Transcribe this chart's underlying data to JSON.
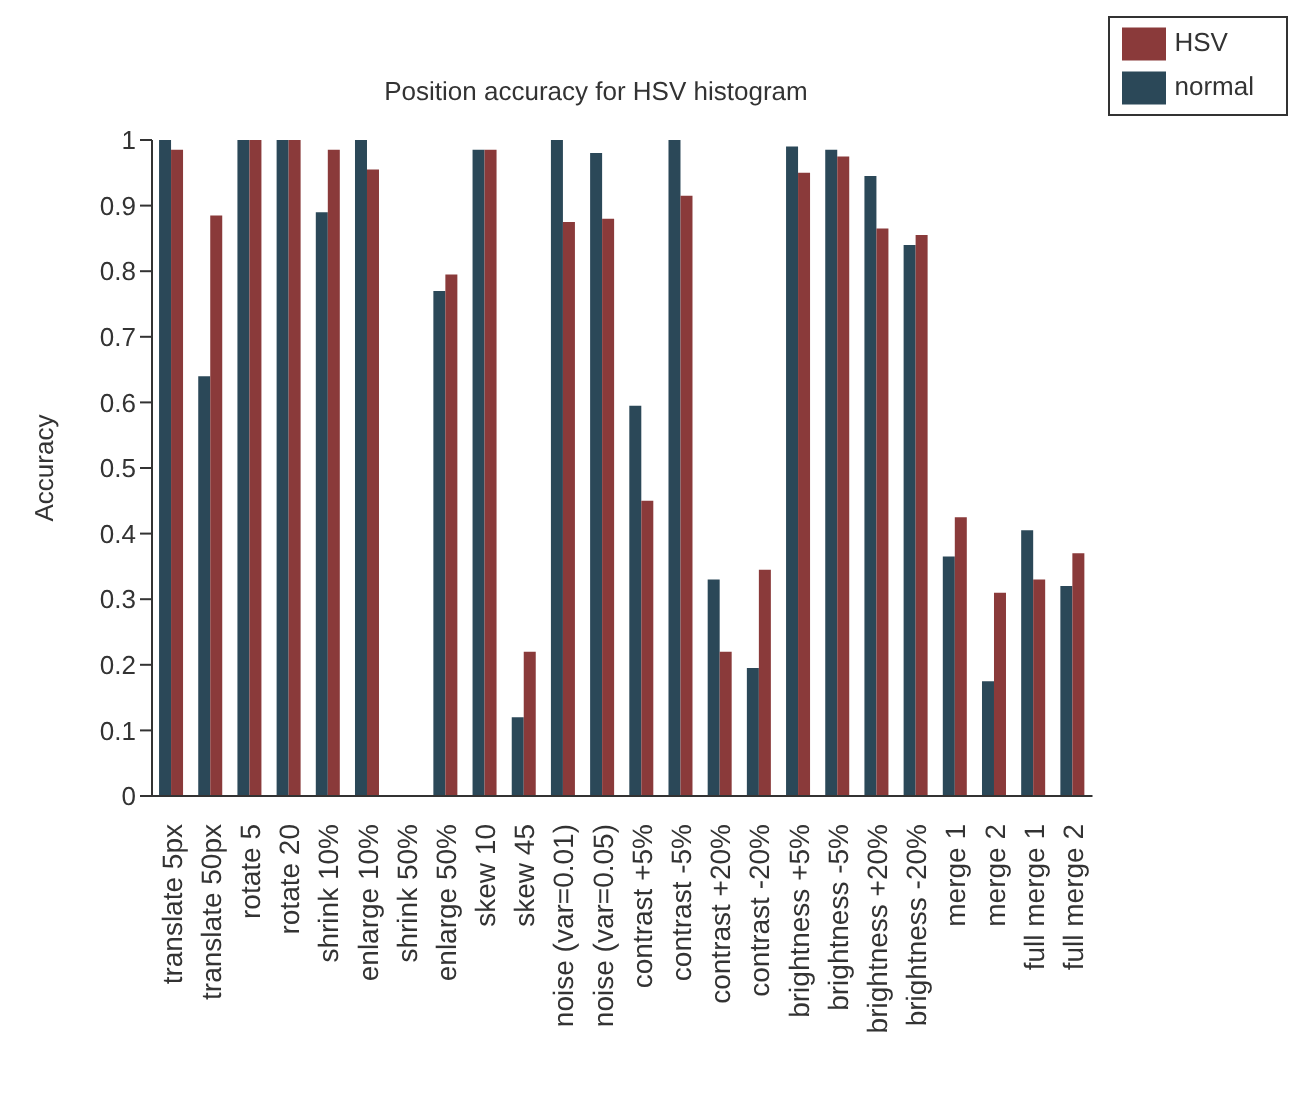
{
  "chart_data": {
    "type": "bar",
    "title": "Position accuracy for HSV histogram",
    "ylabel": "Accuracy",
    "categories": [
      "translate 5px",
      "translate 50px",
      "rotate 5",
      "rotate 20",
      "shrink 10%",
      "enlarge 10%",
      "shrink 50%",
      "enlarge 50%",
      "skew 10",
      "skew 45",
      "noise (var=0.01)",
      "noise (var=0.05)",
      "contrast +5%",
      "contrast -5%",
      "contrast +20%",
      "contrast -20%",
      "brightness +5%",
      "brightness -5%",
      "brightness +20%",
      "brightness -20%",
      "merge 1",
      "merge 2",
      "full merge 1",
      "full merge 2"
    ],
    "series": [
      {
        "name": "normal",
        "color": "#2b4858",
        "values": [
          1,
          0.64,
          1,
          1,
          0.89,
          1,
          0,
          0.77,
          0.985,
          0.12,
          1,
          0.98,
          0.595,
          1,
          0.33,
          0.195,
          0.99,
          0.985,
          0.945,
          0.84,
          0.365,
          0.175,
          0.405,
          0.32
        ]
      },
      {
        "name": "HSV",
        "color": "#8a3a3a",
        "values": [
          0.985,
          0.885,
          1,
          1,
          0.985,
          0.955,
          0,
          0.795,
          0.985,
          0.22,
          0.875,
          0.88,
          0.45,
          0.915,
          0.22,
          0.345,
          0.95,
          0.975,
          0.865,
          0.855,
          0.425,
          0.31,
          0.33,
          0.37
        ]
      }
    ],
    "ylim": [
      0,
      1
    ],
    "yticks": [
      0,
      0.1,
      0.2,
      0.3,
      0.4,
      0.5,
      0.6,
      0.7,
      0.8,
      0.9,
      1
    ],
    "grid": false,
    "legend": "top right"
  }
}
